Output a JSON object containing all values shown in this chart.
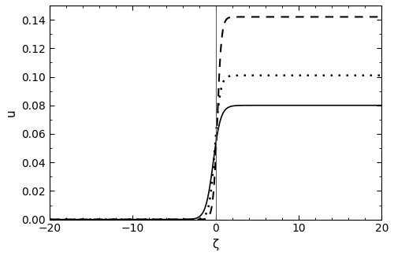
{
  "xlim": [
    -20,
    20
  ],
  "ylim": [
    0,
    0.15
  ],
  "xlabel": "ζ",
  "ylabel": "u",
  "xticks": [
    -20,
    -10,
    0,
    10,
    20
  ],
  "yticks": [
    0.0,
    0.02,
    0.04,
    0.06,
    0.08,
    0.1,
    0.12,
    0.14
  ],
  "curves": [
    {
      "amplitude": 0.08,
      "steepness": 1.1,
      "shift": -0.3,
      "style": "solid",
      "color": "#000000",
      "linewidth": 1.2
    },
    {
      "amplitude": 0.101,
      "steepness": 1.5,
      "shift": -0.1,
      "style": "dotted",
      "color": "#000000",
      "linewidth": 1.8,
      "dotsize": 2.5
    },
    {
      "amplitude": 0.142,
      "steepness": 2.0,
      "shift": 0.2,
      "style": "dashed",
      "color": "#000000",
      "linewidth": 1.5
    }
  ],
  "vline_x": 0,
  "vline_color": "#555555",
  "vline_linewidth": 0.7,
  "background_color": "#ffffff",
  "tick_fontsize": 10,
  "label_fontsize": 11
}
